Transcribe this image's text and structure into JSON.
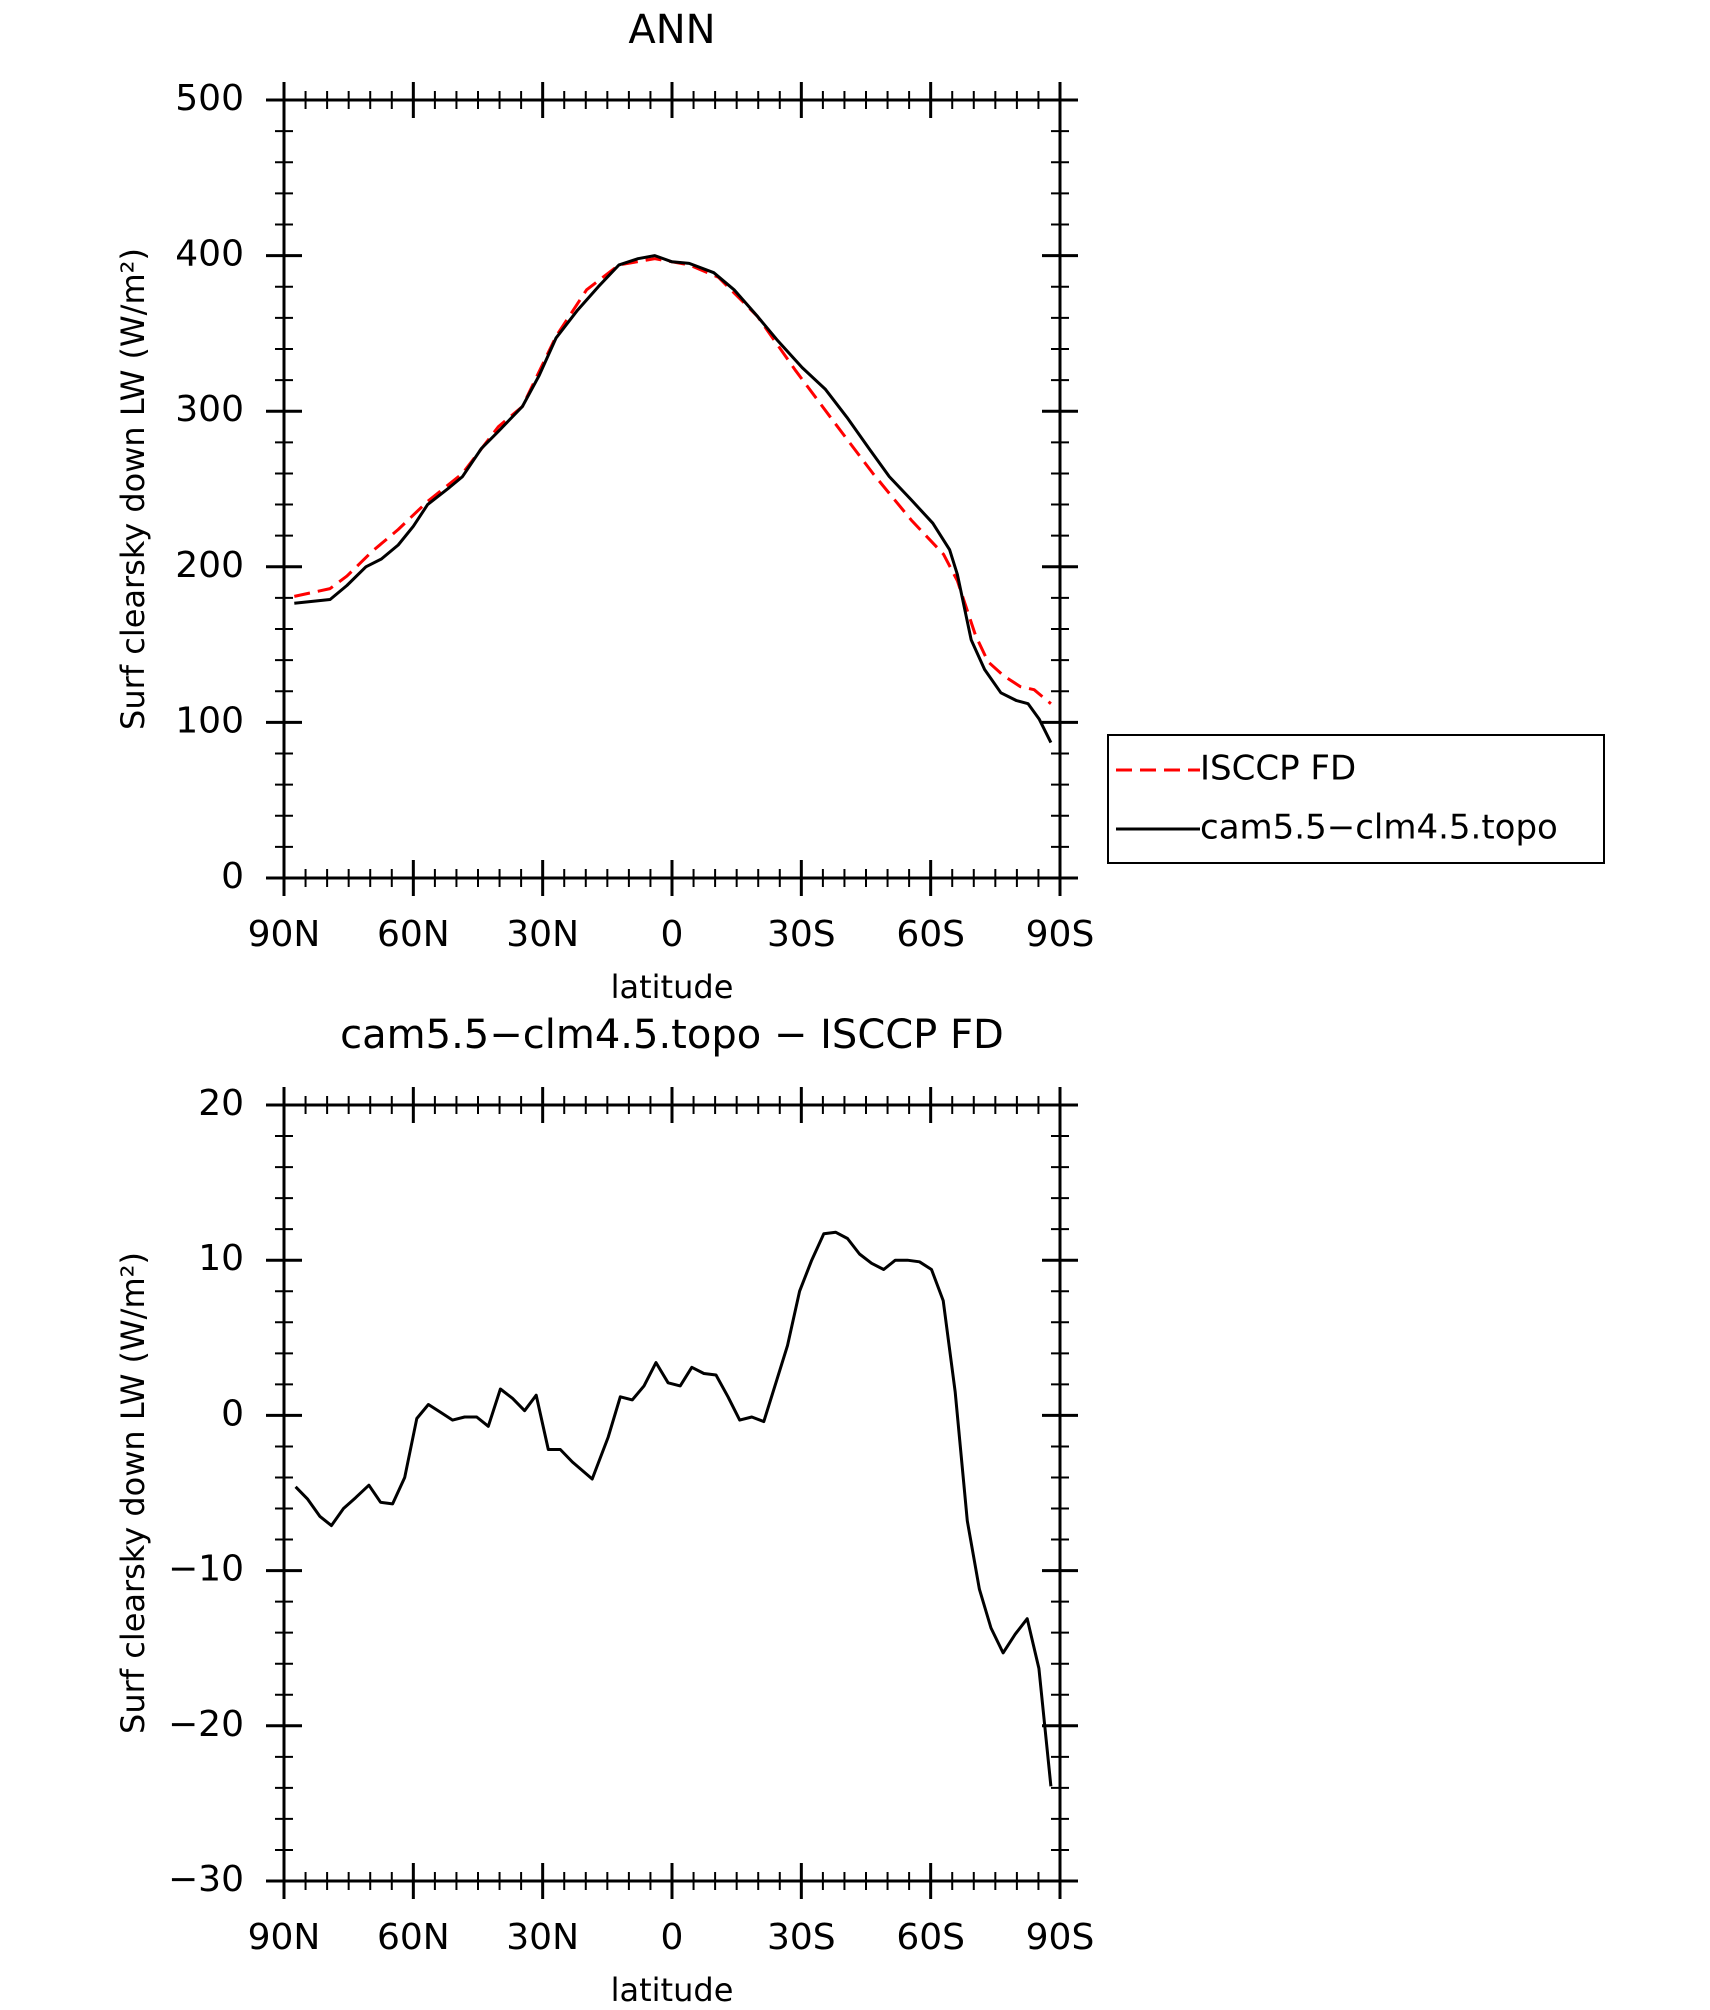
{
  "chart_data": [
    {
      "type": "line",
      "title": "ANN",
      "xlabel": "latitude",
      "ylabel": "Surf clearsky down LW (W/m²)",
      "xlim": [
        90,
        -90
      ],
      "xticks": [
        {
          "value": 90,
          "label": "90N"
        },
        {
          "value": 60,
          "label": "60N"
        },
        {
          "value": 30,
          "label": "30N"
        },
        0,
        {
          "value": -30,
          "label": "30S"
        },
        {
          "value": -60,
          "label": "60S"
        },
        {
          "value": -90,
          "label": "90S"
        }
      ],
      "ylim": [
        0,
        500
      ],
      "yticks": [
        0,
        100,
        200,
        300,
        400,
        500
      ],
      "legend": "right",
      "series": [
        {
          "name": "ISCCP FD",
          "color": "#ff0000",
          "dash": true,
          "x": [
            87.6,
            79.3,
            75.4,
            69.5,
            63.5,
            56.7,
            48.6,
            40.3,
            34.7,
            26.9,
            19.8,
            12.3,
            4.0,
            -4.0,
            -10.8,
            -19.8,
            -28.7,
            -37.6,
            -46.6,
            -55.5,
            -63.0,
            -66.2,
            -70.4,
            -73.3,
            -76.9,
            -80.8,
            -84.0,
            -87.9
          ],
          "values": [
            181,
            186,
            194,
            210,
            224,
            242,
            260,
            290,
            303,
            348,
            378,
            394,
            398,
            394,
            386,
            361,
            326,
            293,
            260,
            230,
            208,
            191,
            156,
            139,
            130,
            123,
            121,
            112
          ]
        },
        {
          "name": "cam5.5−clm4.5.topo",
          "color": "#000000",
          "dash": false,
          "x": [
            87.6,
            79.3,
            75.4,
            71.0,
            67.4,
            63.5,
            60.0,
            56.7,
            51.6,
            48.6,
            44.2,
            40.3,
            34.7,
            30.8,
            26.9,
            21.9,
            17.1,
            12.3,
            7.9,
            4.0,
            0,
            -4.0,
            -9.7,
            -14.4,
            -19.8,
            -24.3,
            -30.2,
            -35.6,
            -40.6,
            -45.7,
            -50.4,
            -55.5,
            -60.5,
            -64.4,
            -66.2,
            -69.4,
            -72.5,
            -76.3,
            -79.9,
            -82.6,
            -85.2,
            -87.9
          ],
          "values": [
            176.6,
            179,
            188,
            200,
            205,
            214,
            226,
            240,
            251,
            258,
            276,
            287,
            303,
            323,
            347,
            365,
            380,
            394,
            398,
            400,
            396,
            395,
            389,
            378,
            361,
            346,
            328,
            314,
            296,
            276,
            258,
            243,
            228,
            211,
            195,
            153,
            134,
            119,
            114,
            112,
            102,
            87
          ]
        }
      ]
    },
    {
      "type": "line",
      "title": "cam5.5−clm4.5.topo − ISCCP FD",
      "xlabel": "latitude",
      "ylabel": "Surf clearsky down LW (W/m²)",
      "xlim": [
        90,
        -90
      ],
      "xticks": [
        {
          "value": 90,
          "label": "90N"
        },
        {
          "value": 60,
          "label": "60N"
        },
        {
          "value": 30,
          "label": "30N"
        },
        0,
        {
          "value": -30,
          "label": "30S"
        },
        {
          "value": -60,
          "label": "60S"
        },
        {
          "value": -90,
          "label": "90S"
        }
      ],
      "ylim": [
        -30,
        20
      ],
      "yticks": [
        {
          "value": -30,
          "label": "−30"
        },
        {
          "value": -20,
          "label": "−20"
        },
        {
          "value": -10,
          "label": "−10"
        },
        0,
        10,
        20
      ],
      "series": [
        {
          "color": "#000000",
          "dash": false,
          "x": [
            87.3,
            84.5,
            81.7,
            79.0,
            76.2,
            73.4,
            70.3,
            67.6,
            64.8,
            62.0,
            59.2,
            56.5,
            53.7,
            50.9,
            48.1,
            45.3,
            42.6,
            39.8,
            37.0,
            34.2,
            31.5,
            28.7,
            25.9,
            23.1,
            18.5,
            14.8,
            12.0,
            9.2,
            6.5,
            3.7,
            0.9,
            -1.9,
            -4.6,
            -7.4,
            -10.2,
            -13.0,
            -15.7,
            -18.5,
            -21.3,
            -24.1,
            -26.8,
            -29.6,
            -32.4,
            -35.2,
            -38.0,
            -40.7,
            -43.5,
            -46.3,
            -49.1,
            -51.8,
            -54.6,
            -57.4,
            -60.2,
            -62.9,
            -65.7,
            -68.5,
            -71.3,
            -74.0,
            -76.8,
            -79.6,
            -82.4,
            -85.1,
            -87.9
          ],
          "values": [
            -4.6,
            -5.4,
            -6.5,
            -7.1,
            -6.0,
            -5.3,
            -4.5,
            -5.6,
            -5.7,
            -4.0,
            -0.2,
            0.7,
            0.2,
            -0.3,
            -0.1,
            -0.1,
            -0.7,
            1.7,
            1.1,
            0.3,
            1.3,
            -2.2,
            -2.2,
            -3.0,
            -4.1,
            -1.4,
            1.2,
            1.0,
            1.9,
            3.4,
            2.1,
            1.9,
            3.1,
            2.7,
            2.6,
            1.2,
            -0.3,
            -0.1,
            -0.4,
            2.1,
            4.5,
            8.0,
            10.0,
            11.7,
            11.8,
            11.4,
            10.4,
            9.8,
            9.4,
            10.0,
            10.0,
            9.9,
            9.4,
            7.4,
            1.5,
            -6.8,
            -11.2,
            -13.7,
            -15.3,
            -14.1,
            -13.1,
            -16.3,
            -23.9
          ]
        }
      ]
    }
  ]
}
